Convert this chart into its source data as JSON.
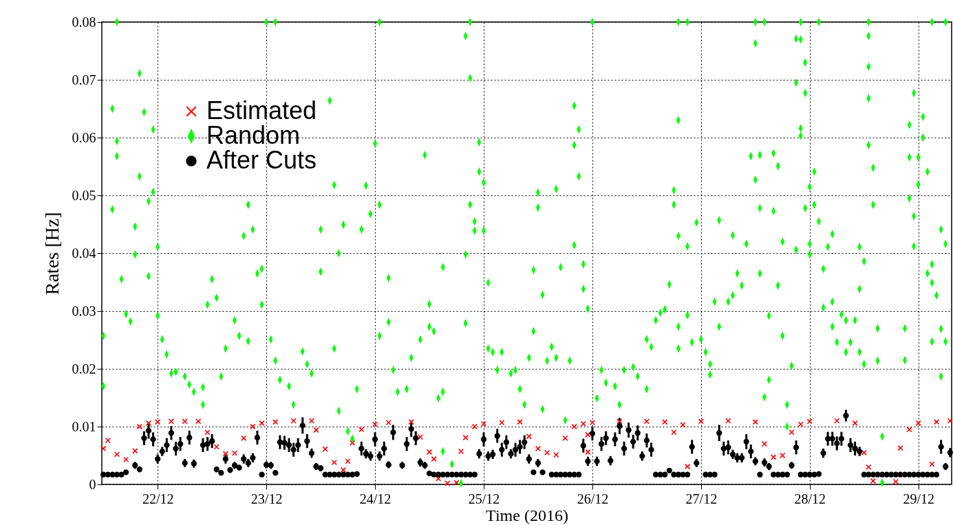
{
  "chart_data": {
    "type": "scatter",
    "xlabel": "Time (2016)",
    "ylabel": "Rates [Hz]",
    "xlim": [
      "2016-12-21T11:40",
      "2016-12-29T07:20"
    ],
    "xticks": [
      {
        "value": "2016-12-22T00:00",
        "label": "22/12"
      },
      {
        "value": "2016-12-23T00:00",
        "label": "23/12"
      },
      {
        "value": "2016-12-24T00:00",
        "label": "24/12"
      },
      {
        "value": "2016-12-25T00:00",
        "label": "25/12"
      },
      {
        "value": "2016-12-26T00:00",
        "label": "26/12"
      },
      {
        "value": "2016-12-27T00:00",
        "label": "27/12"
      },
      {
        "value": "2016-12-28T00:00",
        "label": "28/12"
      },
      {
        "value": "2016-12-29T00:00",
        "label": "29/12"
      }
    ],
    "ylim": [
      0,
      0.08
    ],
    "yticks": [
      0,
      0.01,
      0.02,
      0.03,
      0.04,
      0.05,
      0.06,
      0.07,
      0.08
    ],
    "grid": true,
    "legend": "top left",
    "series": [
      {
        "name": "Estimated",
        "color": "#ff0000",
        "marker": "cross",
        "x": [
          "2016-12-21T12:00",
          "2016-12-21T13:00",
          "2016-12-21T15:00",
          "2016-12-21T17:00",
          "2016-12-21T19:00",
          "2016-12-21T20:00",
          "2016-12-21T22:00",
          "2016-12-22T00:00",
          "2016-12-22T03:00",
          "2016-12-22T06:00",
          "2016-12-22T09:00",
          "2016-12-22T11:00",
          "2016-12-22T13:00",
          "2016-12-22T15:00",
          "2016-12-22T17:00",
          "2016-12-22T19:00",
          "2016-12-22T21:00",
          "2016-12-22T23:00",
          "2016-12-23T02:00",
          "2016-12-23T06:00",
          "2016-12-23T10:00",
          "2016-12-23T11:00",
          "2016-12-23T13:00",
          "2016-12-23T15:00",
          "2016-12-23T17:00",
          "2016-12-23T18:00",
          "2016-12-23T19:00",
          "2016-12-23T21:00",
          "2016-12-24T00:00",
          "2016-12-24T03:00",
          "2016-12-24T08:00",
          "2016-12-24T10:00",
          "2016-12-24T12:00",
          "2016-12-24T13:00",
          "2016-12-24T14:00",
          "2016-12-24T16:00",
          "2016-12-24T18:00",
          "2016-12-24T19:00",
          "2016-12-24T20:00",
          "2016-12-24T22:00",
          "2016-12-25T00:00",
          "2016-12-25T04:00",
          "2016-12-25T08:00",
          "2016-12-25T10:00",
          "2016-12-25T12:00",
          "2016-12-25T14:00",
          "2016-12-25T16:00",
          "2016-12-25T18:00",
          "2016-12-25T20:00",
          "2016-12-25T22:00",
          "2016-12-25T23:00",
          "2016-12-25T23:00",
          "2016-12-26T00:00",
          "2016-12-26T06:00",
          "2016-12-26T12:00",
          "2016-12-26T16:00",
          "2016-12-26T18:00",
          "2016-12-26T20:00",
          "2016-12-26T21:00",
          "2016-12-27T00:00",
          "2016-12-27T06:00",
          "2016-12-27T12:00",
          "2016-12-27T14:00",
          "2016-12-27T16:00",
          "2016-12-27T18:00",
          "2016-12-27T20:00",
          "2016-12-27T22:00",
          "2016-12-28T00:00",
          "2016-12-28T06:00",
          "2016-12-28T10:00",
          "2016-12-28T12:00",
          "2016-12-28T13:00",
          "2016-12-28T14:00",
          "2016-12-28T19:00",
          "2016-12-28T20:00",
          "2016-12-28T22:00",
          "2016-12-29T00:00",
          "2016-12-29T03:00",
          "2016-12-29T04:00",
          "2016-12-29T07:00"
        ],
        "values": [
          0.0062,
          0.0076,
          0.0052,
          0.0043,
          0.0058,
          0.01,
          0.0106,
          0.0108,
          0.0109,
          0.0109,
          0.0109,
          0.009,
          0.0065,
          0.0053,
          0.0054,
          0.008,
          0.01,
          0.0106,
          0.0108,
          0.011,
          0.011,
          0.0094,
          0.0061,
          0.0038,
          0.0025,
          0.004,
          0.0072,
          0.0095,
          0.0104,
          0.0107,
          0.0108,
          0.0082,
          0.0056,
          0.0044,
          0.001,
          0.0002,
          0.0003,
          0.0057,
          0.0081,
          0.01,
          0.0105,
          0.0107,
          0.0108,
          0.0083,
          0.0062,
          0.0055,
          0.0051,
          0.008,
          0.01,
          0.0105,
          0.0086,
          0.0056,
          0.0107,
          0.0109,
          0.0109,
          0.0108,
          0.009,
          0.0103,
          0.0031,
          0.0109,
          0.011,
          0.0108,
          0.007,
          0.0047,
          0.005,
          0.009,
          0.0104,
          0.0109,
          0.011,
          0.0106,
          0.0055,
          0.003,
          0.0006,
          0.0005,
          0.0063,
          0.0095,
          0.0106,
          0.0035,
          0.0108,
          0.011
        ]
      },
      {
        "name": "Random",
        "color": "#00ff00",
        "marker": "diamond",
        "x": [
          "2016-12-21T12:00",
          "2016-12-21T12:00",
          "2016-12-21T14:00",
          "2016-12-21T14:00",
          "2016-12-21T15:00",
          "2016-12-21T15:00",
          "2016-12-21T15:00",
          "2016-12-21T16:00",
          "2016-12-21T17:00",
          "2016-12-21T18:00",
          "2016-12-21T19:00",
          "2016-12-21T19:00",
          "2016-12-21T20:00",
          "2016-12-21T20:00",
          "2016-12-21T21:00",
          "2016-12-21T22:00",
          "2016-12-21T22:00",
          "2016-12-21T23:00",
          "2016-12-21T23:00",
          "2016-12-22T00:00",
          "2016-12-22T00:00",
          "2016-12-22T01:00",
          "2016-12-22T02:00",
          "2016-12-22T03:00",
          "2016-12-22T04:00",
          "2016-12-22T06:00",
          "2016-12-22T07:00",
          "2016-12-22T08:00",
          "2016-12-22T10:00",
          "2016-12-22T10:00",
          "2016-12-22T11:00",
          "2016-12-22T12:00",
          "2016-12-22T13:00",
          "2016-12-22T14:00",
          "2016-12-22T15:00",
          "2016-12-22T17:00",
          "2016-12-22T18:00",
          "2016-12-22T19:00",
          "2016-12-22T20:00",
          "2016-12-22T20:00",
          "2016-12-22T21:00",
          "2016-12-22T22:00",
          "2016-12-22T23:00",
          "2016-12-22T23:00",
          "2016-12-23T00:00",
          "2016-12-23T01:00",
          "2016-12-23T02:00",
          "2016-12-23T02:00",
          "2016-12-23T03:00",
          "2016-12-23T05:00",
          "2016-12-23T06:00",
          "2016-12-23T08:00",
          "2016-12-23T09:00",
          "2016-12-23T10:00",
          "2016-12-23T12:00",
          "2016-12-23T12:00",
          "2016-12-23T14:00",
          "2016-12-23T15:00",
          "2016-12-23T15:00",
          "2016-12-23T16:00",
          "2016-12-23T16:00",
          "2016-12-23T17:00",
          "2016-12-23T18:00",
          "2016-12-23T19:00",
          "2016-12-23T20:00",
          "2016-12-23T21:00",
          "2016-12-23T22:00",
          "2016-12-23T23:00",
          "2016-12-24T00:00",
          "2016-12-24T01:00",
          "2016-12-24T01:00",
          "2016-12-24T01:00",
          "2016-12-24T03:00",
          "2016-12-24T03:00",
          "2016-12-24T04:00",
          "2016-12-24T05:00",
          "2016-12-24T07:00",
          "2016-12-24T08:00",
          "2016-12-24T10:00",
          "2016-12-24T11:00",
          "2016-12-24T12:00",
          "2016-12-24T12:00",
          "2016-12-24T13:00",
          "2016-12-24T14:00",
          "2016-12-24T15:00",
          "2016-12-24T15:00",
          "2016-12-24T15:00",
          "2016-12-24T17:00",
          "2016-12-24T19:00",
          "2016-12-24T20:00",
          "2016-12-24T20:00",
          "2016-12-24T20:00",
          "2016-12-24T21:00",
          "2016-12-24T21:00",
          "2016-12-24T21:00",
          "2016-12-24T22:00",
          "2016-12-24T22:00",
          "2016-12-24T23:00",
          "2016-12-24T23:00",
          "2016-12-25T00:00",
          "2016-12-25T00:00",
          "2016-12-25T01:00",
          "2016-12-25T01:00",
          "2016-12-25T02:00",
          "2016-12-25T03:00",
          "2016-12-25T04:00",
          "2016-12-25T06:00",
          "2016-12-25T07:00",
          "2016-12-25T08:00",
          "2016-12-25T09:00",
          "2016-12-25T10:00",
          "2016-12-25T11:00",
          "2016-12-25T11:00",
          "2016-12-25T12:00",
          "2016-12-25T12:00",
          "2016-12-25T13:00",
          "2016-12-25T13:00",
          "2016-12-25T14:00",
          "2016-12-25T15:00",
          "2016-12-25T16:00",
          "2016-12-25T16:00",
          "2016-12-25T17:00",
          "2016-12-25T18:00",
          "2016-12-25T19:00",
          "2016-12-25T20:00",
          "2016-12-25T20:00",
          "2016-12-25T20:00",
          "2016-12-25T21:00",
          "2016-12-25T21:00",
          "2016-12-25T22:00",
          "2016-12-25T22:00",
          "2016-12-25T23:00",
          "2016-12-26T00:00",
          "2016-12-26T01:00",
          "2016-12-26T02:00",
          "2016-12-26T03:00",
          "2016-12-26T05:00",
          "2016-12-26T06:00",
          "2016-12-26T07:00",
          "2016-12-26T09:00",
          "2016-12-26T10:00",
          "2016-12-26T12:00",
          "2016-12-26T12:00",
          "2016-12-26T13:00",
          "2016-12-26T14:00",
          "2016-12-26T15:00",
          "2016-12-26T16:00",
          "2016-12-26T17:00",
          "2016-12-26T18:00",
          "2016-12-26T18:00",
          "2016-12-26T19:00",
          "2016-12-26T19:00",
          "2016-12-26T19:00",
          "2016-12-26T19:00",
          "2016-12-26T19:00",
          "2016-12-26T21:00",
          "2016-12-26T21:00",
          "2016-12-26T21:00",
          "2016-12-26T22:00",
          "2016-12-26T23:00",
          "2016-12-27T00:00",
          "2016-12-27T01:00",
          "2016-12-27T02:00",
          "2016-12-27T02:00",
          "2016-12-27T03:00",
          "2016-12-27T04:00",
          "2016-12-27T04:00",
          "2016-12-27T06:00",
          "2016-12-27T07:00",
          "2016-12-27T07:00",
          "2016-12-27T08:00",
          "2016-12-27T09:00",
          "2016-12-27T10:00",
          "2016-12-27T11:00",
          "2016-12-27T12:00",
          "2016-12-27T12:00",
          "2016-12-27T12:00",
          "2016-12-27T13:00",
          "2016-12-27T13:00",
          "2016-12-27T13:00",
          "2016-12-27T14:00",
          "2016-12-27T14:00",
          "2016-12-27T15:00",
          "2016-12-27T15:00",
          "2016-12-27T16:00",
          "2016-12-27T16:00",
          "2016-12-27T17:00",
          "2016-12-27T17:00",
          "2016-12-27T18:00",
          "2016-12-27T18:00",
          "2016-12-27T19:00",
          "2016-12-27T19:00",
          "2016-12-27T20:00",
          "2016-12-27T21:00",
          "2016-12-27T21:00",
          "2016-12-27T21:00",
          "2016-12-27T22:00",
          "2016-12-27T22:00",
          "2016-12-27T22:00",
          "2016-12-27T22:00",
          "2016-12-27T23:00",
          "2016-12-27T23:00",
          "2016-12-27T23:00",
          "2016-12-28T00:00",
          "2016-12-28T00:00",
          "2016-12-28T00:00",
          "2016-12-28T01:00",
          "2016-12-28T01:00",
          "2016-12-28T02:00",
          "2016-12-28T02:00",
          "2016-12-28T03:00",
          "2016-12-28T03:00",
          "2016-12-28T04:00",
          "2016-12-28T05:00",
          "2016-12-28T05:00",
          "2016-12-28T05:00",
          "2016-12-28T06:00",
          "2016-12-28T07:00",
          "2016-12-28T08:00",
          "2016-12-28T08:00",
          "2016-12-28T09:00",
          "2016-12-28T10:00",
          "2016-12-28T11:00",
          "2016-12-28T11:00",
          "2016-12-28T11:00",
          "2016-12-28T12:00",
          "2016-12-28T12:00",
          "2016-12-28T13:00",
          "2016-12-28T13:00",
          "2016-12-28T13:00",
          "2016-12-28T13:00",
          "2016-12-28T13:00",
          "2016-12-28T14:00",
          "2016-12-28T14:00",
          "2016-12-28T15:00",
          "2016-12-28T15:00",
          "2016-12-28T16:00",
          "2016-12-28T16:00",
          "2016-12-28T21:00",
          "2016-12-28T21:00",
          "2016-12-28T22:00",
          "2016-12-28T22:00",
          "2016-12-28T22:00",
          "2016-12-28T23:00",
          "2016-12-28T23:00",
          "2016-12-28T23:00",
          "2016-12-29T00:00",
          "2016-12-29T00:00",
          "2016-12-29T01:00",
          "2016-12-29T01:00",
          "2016-12-29T02:00",
          "2016-12-29T02:00",
          "2016-12-29T03:00",
          "2016-12-29T03:00",
          "2016-12-29T03:00",
          "2016-12-29T03:00",
          "2016-12-29T04:00",
          "2016-12-29T05:00",
          "2016-12-29T05:00",
          "2016-12-29T05:00",
          "2016-12-29T06:00",
          "2016-12-29T06:00",
          "2016-12-29T06:00"
        ],
        "values": [
          0.0257,
          0.017,
          0.0476,
          0.065,
          0.08,
          0.0594,
          0.0568,
          0.0355,
          0.0295,
          0.0282,
          0.0446,
          0.0398,
          0.0533,
          0.0711,
          0.0644,
          0.049,
          0.036,
          0.0614,
          0.0506,
          0.0411,
          0.0292,
          0.0251,
          0.0225,
          0.0192,
          0.0195,
          0.0187,
          0.0173,
          0.016,
          0.0138,
          0.0168,
          0.0311,
          0.0355,
          0.0323,
          0.0187,
          0.0235,
          0.0284,
          0.0257,
          0.043,
          0.0248,
          0.0484,
          0.0441,
          0.0365,
          0.0373,
          0.0311,
          0.08,
          0.0251,
          0.08,
          0.0214,
          0.0181,
          0.017,
          0.0138,
          0.023,
          0.0208,
          0.0192,
          0.0441,
          0.0368,
          0.0664,
          0.0518,
          0.0235,
          0.0127,
          0.04,
          0.0449,
          0.0092,
          0.0079,
          0.0165,
          0.0441,
          0.0517,
          0.0468,
          0.059,
          0.0257,
          0.08,
          0.0484,
          0.0357,
          0.0281,
          0.0198,
          0.016,
          0.0165,
          0.0219,
          0.0251,
          0.057,
          0.0273,
          0.0312,
          0.0265,
          0.0149,
          0.0376,
          0.016,
          0.0057,
          0.0035,
          0.0002,
          0.0279,
          0.0398,
          0.0776,
          0.0703,
          0.08,
          0.0484,
          0.0455,
          0.0439,
          0.0592,
          0.0541,
          0.0522,
          0.0439,
          0.0349,
          0.0235,
          0.0229,
          0.0198,
          0.0229,
          0.0192,
          0.0198,
          0.0165,
          0.0138,
          0.0219,
          0.0265,
          0.0371,
          0.0479,
          0.0505,
          0.0328,
          0.013,
          0.0214,
          0.0238,
          0.0219,
          0.0511,
          0.0376,
          0.0111,
          0.0214,
          0.0414,
          0.0655,
          0.0587,
          0.0533,
          0.0614,
          0.0381,
          0.0338,
          0.0304,
          0.08,
          0.0149,
          0.0198,
          0.0176,
          0.017,
          0.0138,
          0.0198,
          0.0203,
          0.0187,
          0.0165,
          0.0251,
          0.0238,
          0.0284,
          0.0297,
          0.0303,
          0.0346,
          0.0484,
          0.0509,
          0.08,
          0.063,
          0.043,
          0.0273,
          0.0235,
          0.0412,
          0.08,
          0.0293,
          0.0246,
          0.0453,
          0.0251,
          0.0229,
          0.0208,
          0.019,
          0.0316,
          0.0457,
          0.0273,
          0.0316,
          0.0327,
          0.0431,
          0.0365,
          0.0344,
          0.0416,
          0.0568,
          0.0763,
          0.08,
          0.0527,
          0.0478,
          0.0365,
          0.057,
          0.08,
          0.0151,
          0.0181,
          0.0292,
          0.0473,
          0.0573,
          0.0344,
          0.0551,
          0.042,
          0.0257,
          0.0138,
          0.01,
          0.0205,
          0.0406,
          0.0771,
          0.0695,
          0.0603,
          0.08,
          0.077,
          0.0616,
          0.073,
          0.0677,
          0.0478,
          0.0416,
          0.0515,
          0.0398,
          0.0484,
          0.0541,
          0.0455,
          0.08,
          0.0373,
          0.0306,
          0.0411,
          0.0433,
          0.0316,
          0.0273,
          0.0246,
          0.0294,
          0.0284,
          0.0229,
          0.0246,
          0.0284,
          0.0229,
          0.0338,
          0.0411,
          0.0208,
          0.0386,
          0.08,
          0.0776,
          0.0723,
          0.0668,
          0.0587,
          0.0484,
          0.0548,
          0.0214,
          0.027,
          0.0083,
          0.0003,
          0.027,
          0.0215,
          0.0495,
          0.0566,
          0.0622,
          0.0677,
          0.0412,
          0.0464,
          0.0519,
          0.0566,
          0.0636,
          0.06,
          0.0541,
          0.0365,
          0.0381,
          0.0247,
          0.08,
          0.0349,
          0.0327,
          0.0269,
          0.0441,
          0.0187,
          0.08,
          0.0416,
          0.0247
        ]
      },
      {
        "name": "After Cuts",
        "color": "#000000",
        "marker": "circle",
        "x": [
          "2016-12-21T12:00",
          "2016-12-21T13:00",
          "2016-12-21T14:00",
          "2016-12-21T15:00",
          "2016-12-21T16:00",
          "2016-12-21T17:00",
          "2016-12-21T19:00",
          "2016-12-21T20:00",
          "2016-12-21T21:00",
          "2016-12-21T22:00",
          "2016-12-21T23:00",
          "2016-12-22T00:00",
          "2016-12-22T01:00",
          "2016-12-22T02:00",
          "2016-12-22T03:00",
          "2016-12-22T04:00",
          "2016-12-22T05:00",
          "2016-12-22T06:00",
          "2016-12-22T07:00",
          "2016-12-22T08:00",
          "2016-12-22T10:00",
          "2016-12-22T11:00",
          "2016-12-22T12:00",
          "2016-12-22T13:00",
          "2016-12-22T14:00",
          "2016-12-22T15:00",
          "2016-12-22T16:00",
          "2016-12-22T17:00",
          "2016-12-22T18:00",
          "2016-12-22T19:00",
          "2016-12-22T20:00",
          "2016-12-22T21:00",
          "2016-12-22T22:00",
          "2016-12-22T23:00",
          "2016-12-23T00:00",
          "2016-12-23T01:00",
          "2016-12-23T02:00",
          "2016-12-23T03:00",
          "2016-12-23T04:00",
          "2016-12-23T05:00",
          "2016-12-23T06:00",
          "2016-12-23T07:00",
          "2016-12-23T08:00",
          "2016-12-23T09:00",
          "2016-12-23T10:00",
          "2016-12-23T11:00",
          "2016-12-23T12:00",
          "2016-12-23T13:00",
          "2016-12-23T14:00",
          "2016-12-23T15:00",
          "2016-12-23T16:00",
          "2016-12-23T17:00",
          "2016-12-23T18:00",
          "2016-12-23T19:00",
          "2016-12-23T20:00",
          "2016-12-23T21:00",
          "2016-12-23T22:00",
          "2016-12-23T23:00",
          "2016-12-24T00:00",
          "2016-12-24T01:00",
          "2016-12-24T02:00",
          "2016-12-24T03:00",
          "2016-12-24T04:00",
          "2016-12-24T06:00",
          "2016-12-24T07:00",
          "2016-12-24T08:00",
          "2016-12-24T09:00",
          "2016-12-24T10:00",
          "2016-12-24T11:00",
          "2016-12-24T12:00",
          "2016-12-24T13:00",
          "2016-12-24T14:00",
          "2016-12-24T15:00",
          "2016-12-24T16:00",
          "2016-12-24T17:00",
          "2016-12-24T18:00",
          "2016-12-24T19:00",
          "2016-12-24T20:00",
          "2016-12-24T21:00",
          "2016-12-24T22:00",
          "2016-12-24T23:00",
          "2016-12-25T00:00",
          "2016-12-25T01:00",
          "2016-12-25T02:00",
          "2016-12-25T03:00",
          "2016-12-25T04:00",
          "2016-12-25T05:00",
          "2016-12-25T06:00",
          "2016-12-25T07:00",
          "2016-12-25T08:00",
          "2016-12-25T09:00",
          "2016-12-25T10:00",
          "2016-12-25T11:00",
          "2016-12-25T12:00",
          "2016-12-25T13:00",
          "2016-12-25T15:00",
          "2016-12-25T16:00",
          "2016-12-25T17:00",
          "2016-12-25T18:00",
          "2016-12-25T19:00",
          "2016-12-25T20:00",
          "2016-12-25T21:00",
          "2016-12-25T22:00",
          "2016-12-25T23:00",
          "2016-12-26T00:00",
          "2016-12-26T01:00",
          "2016-12-26T02:00",
          "2016-12-26T03:00",
          "2016-12-26T04:00",
          "2016-12-26T05:00",
          "2016-12-26T06:00",
          "2016-12-26T07:00",
          "2016-12-26T08:00",
          "2016-12-26T09:00",
          "2016-12-26T10:00",
          "2016-12-26T11:00",
          "2016-12-26T12:00",
          "2016-12-26T13:00",
          "2016-12-26T14:00",
          "2016-12-26T15:00",
          "2016-12-26T16:00",
          "2016-12-26T17:00",
          "2016-12-26T18:00",
          "2016-12-26T19:00",
          "2016-12-26T20:00",
          "2016-12-26T21:00",
          "2016-12-26T22:00",
          "2016-12-26T23:00",
          "2016-12-27T01:00",
          "2016-12-27T02:00",
          "2016-12-27T03:00",
          "2016-12-27T04:00",
          "2016-12-27T05:00",
          "2016-12-27T06:00",
          "2016-12-27T07:00",
          "2016-12-27T08:00",
          "2016-12-27T09:00",
          "2016-12-27T10:00",
          "2016-12-27T11:00",
          "2016-12-27T12:00",
          "2016-12-27T13:00",
          "2016-12-27T14:00",
          "2016-12-27T15:00",
          "2016-12-27T16:00",
          "2016-12-27T17:00",
          "2016-12-27T18:00",
          "2016-12-27T19:00",
          "2016-12-27T20:00",
          "2016-12-27T21:00",
          "2016-12-27T22:00",
          "2016-12-27T23:00",
          "2016-12-28T00:00",
          "2016-12-28T01:00",
          "2016-12-28T02:00",
          "2016-12-28T03:00",
          "2016-12-28T04:00",
          "2016-12-28T05:00",
          "2016-12-28T06:00",
          "2016-12-28T07:00",
          "2016-12-28T08:00",
          "2016-12-28T09:00",
          "2016-12-28T10:00",
          "2016-12-28T11:00",
          "2016-12-28T12:00",
          "2016-12-28T13:00",
          "2016-12-28T14:00",
          "2016-12-28T15:00",
          "2016-12-28T16:00",
          "2016-12-28T17:00",
          "2016-12-28T18:00",
          "2016-12-28T19:00",
          "2016-12-28T20:00",
          "2016-12-28T21:00",
          "2016-12-28T22:00",
          "2016-12-28T23:00",
          "2016-12-29T00:00",
          "2016-12-29T01:00",
          "2016-12-29T02:00",
          "2016-12-29T03:00",
          "2016-12-29T04:00",
          "2016-12-29T05:00",
          "2016-12-29T06:00",
          "2016-12-29T07:00"
        ],
        "values": [
          0.0017,
          0.0017,
          0.0017,
          0.0017,
          0.0017,
          0.0021,
          0.0033,
          0.0026,
          0.008,
          0.0093,
          0.0078,
          0.0044,
          0.0057,
          0.0068,
          0.0089,
          0.0062,
          0.007,
          0.0037,
          0.0081,
          0.0036,
          0.0068,
          0.007,
          0.0075,
          0.0026,
          0.002,
          0.0044,
          0.0025,
          0.0033,
          0.0029,
          0.0044,
          0.0037,
          0.0046,
          0.0081,
          0.0017,
          0.0034,
          0.0033,
          0.002,
          0.0073,
          0.0072,
          0.0068,
          0.006,
          0.0068,
          0.0102,
          0.0075,
          0.0054,
          0.0031,
          0.0028,
          0.0017,
          0.0017,
          0.0017,
          0.0017,
          0.0017,
          0.0017,
          0.0017,
          0.0018,
          0.0062,
          0.0053,
          0.0049,
          0.0078,
          0.0049,
          0.0062,
          0.0034,
          0.009,
          0.0033,
          0.007,
          0.0096,
          0.008,
          0.0038,
          0.0033,
          0.0019,
          0.0017,
          0.0017,
          0.0017,
          0.0017,
          0.0017,
          0.0017,
          0.0017,
          0.0017,
          0.0017,
          0.0017,
          0.0053,
          0.0078,
          0.0049,
          0.0052,
          0.0084,
          0.006,
          0.0073,
          0.0053,
          0.006,
          0.0065,
          0.0073,
          0.0044,
          0.0021,
          0.0037,
          0.0021,
          0.0017,
          0.0017,
          0.0017,
          0.0017,
          0.0017,
          0.0017,
          0.0017,
          0.0067,
          0.004,
          0.0088,
          0.004,
          0.007,
          0.008,
          0.0041,
          0.0078,
          0.0101,
          0.0062,
          0.0094,
          0.0074,
          0.0089,
          0.0049,
          0.0076,
          0.006,
          0.0017,
          0.0017,
          0.0017,
          0.0024,
          0.0017,
          0.0017,
          0.0017,
          0.0017,
          0.0065,
          0.0037,
          0.0017,
          0.0017,
          0.0017,
          0.0089,
          0.0062,
          0.0064,
          0.0052,
          0.0046,
          0.0046,
          0.0074,
          0.0057,
          0.004,
          0.0017,
          0.0038,
          0.0031,
          0.0017,
          0.0017,
          0.0017,
          0.0017,
          0.0033,
          0.0064,
          0.0017,
          0.0017,
          0.0017,
          0.0017,
          0.0018,
          0.0054,
          0.0079,
          0.0079,
          0.0071,
          0.0079,
          0.0119,
          0.0068,
          0.0062,
          0.0057,
          0.0017,
          0.0017,
          0.0017,
          0.0017,
          0.0017,
          0.0017,
          0.0017,
          0.0017,
          0.0017,
          0.0017,
          0.0017,
          0.0017,
          0.0017,
          0.0017,
          0.0017,
          0.0017,
          0.0017,
          0.0065,
          0.0031,
          0.0055
        ],
        "errors": [
          null,
          null,
          null,
          null,
          null,
          0.0004,
          0.0006,
          0.0005,
          0.0012,
          0.0014,
          0.0012,
          0.0008,
          0.0008,
          0.0012,
          0.0012,
          0.0012,
          0.0012,
          0.0007,
          0.0012,
          0.0007,
          0.0012,
          0.0012,
          0.0012,
          0.0005,
          0.0004,
          0.0008,
          0.0005,
          0.0006,
          0.0005,
          0.0008,
          0.0007,
          0.0008,
          0.0012,
          null,
          0.0006,
          0.0006,
          0.0004,
          0.0012,
          0.0012,
          0.0012,
          0.0012,
          0.0012,
          0.0014,
          0.0012,
          0.0008,
          0.0006,
          0.0005,
          null,
          null,
          null,
          null,
          null,
          null,
          null,
          0.0003,
          0.0012,
          0.0008,
          0.0008,
          0.0012,
          0.0008,
          0.0012,
          0.0006,
          0.0013,
          0.0006,
          0.0012,
          0.0014,
          0.0012,
          0.0007,
          0.0006,
          0.0004,
          null,
          null,
          null,
          null,
          null,
          null,
          null,
          null,
          null,
          null,
          0.0008,
          0.0012,
          0.0008,
          0.0008,
          0.0012,
          0.0012,
          0.0012,
          0.0008,
          0.0012,
          0.0012,
          0.0012,
          0.0008,
          0.0004,
          0.0007,
          0.0004,
          null,
          null,
          null,
          null,
          null,
          null,
          null,
          0.0012,
          0.0008,
          0.0012,
          0.0008,
          0.0012,
          0.0012,
          0.0008,
          0.0012,
          0.0014,
          0.0012,
          0.0013,
          0.0012,
          0.0013,
          0.0008,
          0.0012,
          0.0012,
          null,
          null,
          null,
          0.0004,
          null,
          null,
          null,
          null,
          0.0012,
          0.0007,
          null,
          null,
          null,
          0.0014,
          0.0012,
          0.0012,
          0.0008,
          0.0008,
          0.0008,
          0.0013,
          0.0012,
          0.0007,
          null,
          0.0007,
          0.0006,
          null,
          null,
          null,
          null,
          0.0006,
          0.0012,
          null,
          null,
          null,
          null,
          0.0003,
          0.0008,
          0.0012,
          0.0012,
          0.0012,
          0.0012,
          0.001,
          0.0012,
          0.0012,
          0.0008,
          null,
          null,
          null,
          null,
          null,
          null,
          null,
          null,
          null,
          null,
          null,
          null,
          null,
          null,
          null,
          null,
          null,
          0.0012,
          0.0006,
          0.0008
        ]
      }
    ]
  }
}
